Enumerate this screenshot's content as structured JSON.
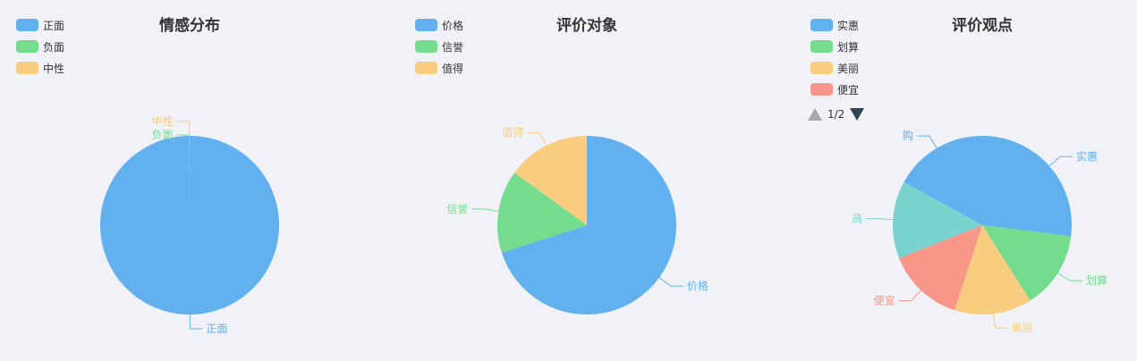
{
  "chart_data": [
    {
      "type": "pie",
      "title": "情感分布",
      "legend_position": "top-left",
      "categories": [
        "正面",
        "负面",
        "中性"
      ],
      "values": [
        99.9,
        0.05,
        0.05
      ],
      "colors": [
        "#62b0ee",
        "#76dc8d",
        "#f9cd80"
      ]
    },
    {
      "type": "pie",
      "title": "评价对象",
      "legend_position": "top-left",
      "categories": [
        "价格",
        "信誉",
        "值得"
      ],
      "values": [
        70,
        15,
        15
      ],
      "colors": [
        "#62b0ee",
        "#76dc8d",
        "#f9cd80"
      ]
    },
    {
      "type": "pie",
      "title": "评价观点",
      "legend_position": "top-left",
      "categories": [
        "实惠",
        "划算",
        "美丽",
        "便宜",
        "高",
        "购"
      ],
      "values": [
        27,
        14,
        14,
        14,
        14,
        17
      ],
      "colors": [
        "#62b0ee",
        "#76dc8d",
        "#f9cd80",
        "#f89789",
        "#7bd3d0",
        "#62b0ee"
      ],
      "legend_visible_count": 4,
      "legend_page": "1/2"
    }
  ]
}
